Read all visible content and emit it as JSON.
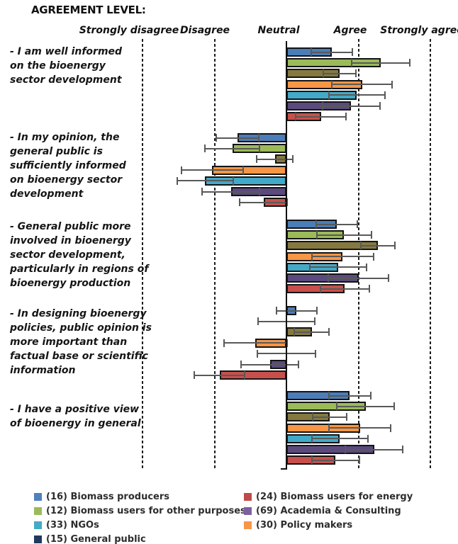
{
  "title": "AGREEMENT LEVEL:",
  "chart_data": {
    "type": "bar",
    "orientation": "horizontal",
    "title": "AGREEMENT LEVEL:",
    "categories_axis": [
      "Strongly disagree",
      "Disagree",
      "Neutral",
      "Agree",
      "Strongly agree"
    ],
    "value_range": [
      -2,
      2
    ],
    "value_mapping": {
      "Strongly disagree": -2,
      "Disagree": -1,
      "Neutral": 0,
      "Agree": 1,
      "Strongly agree": 2
    },
    "grid": "dashed vertical lines at each agreement level, solid axis at Neutral",
    "error_bars": true,
    "statements": [
      "- I am well informed on the bioenergy sector development",
      "- In my opinion, the general public is sufficiently informed on bioenergy sector development",
      "- General public more involved in bioenergy sector development, particularly in regions of bioenergy production",
      "- In designing bioenergy policies, public opinion is more important than factual base or scientific information",
      "- I have a positive view of bioenergy in general"
    ],
    "series": [
      {
        "name": "Biomass producers",
        "n": 16,
        "bar_color": "#4B7DB8",
        "values": [
          0.63,
          -0.68,
          0.7,
          0.14,
          0.88
        ],
        "errors": [
          0.29,
          0.3,
          0.29,
          0.28,
          0.29
        ]
      },
      {
        "name": "Biomass users for other purposes",
        "n": 12,
        "bar_color": "#9BBB59",
        "values": [
          1.31,
          -0.75,
          0.8,
          0.0,
          1.1
        ],
        "errors": [
          0.4,
          0.38,
          0.38,
          0.39,
          0.4
        ]
      },
      {
        "name": "General public",
        "n": 15,
        "bar_color": "#85793F",
        "values": [
          0.74,
          -0.16,
          1.27,
          0.35,
          0.6
        ],
        "errors": [
          0.23,
          0.25,
          0.24,
          0.24,
          0.24
        ]
      },
      {
        "name": "Policy makers",
        "n": 30,
        "bar_color": "#F79646",
        "values": [
          1.05,
          -1.03,
          0.78,
          -0.43,
          1.02
        ],
        "errors": [
          0.42,
          0.43,
          0.43,
          0.44,
          0.43
        ]
      },
      {
        "name": "NGOs",
        "n": 33,
        "bar_color": "#42AAC8",
        "values": [
          0.98,
          -1.13,
          0.72,
          0.0,
          0.74
        ],
        "errors": [
          0.39,
          0.39,
          0.39,
          0.4,
          0.39
        ]
      },
      {
        "name": "Academia & Consulting",
        "n": 69,
        "bar_color": "#5B4A7E",
        "values": [
          0.9,
          -0.77,
          1.0,
          -0.23,
          1.22
        ],
        "errors": [
          0.4,
          0.4,
          0.42,
          0.4,
          0.4
        ]
      },
      {
        "name": "Biomass users for energy",
        "n": 24,
        "bar_color": "#C8504C",
        "values": [
          0.48,
          -0.32,
          0.81,
          -0.93,
          0.68
        ],
        "errors": [
          0.35,
          0.33,
          0.34,
          0.35,
          0.33
        ]
      }
    ],
    "legend_position": "bottom"
  },
  "legend": {
    "left_column": [
      {
        "label": "(16) Biomass producers",
        "color": "#4F81BD"
      },
      {
        "label": "(12) Biomass users for other purposes",
        "color": "#9BBB59"
      },
      {
        "label": "(33) NGOs",
        "color": "#45AAC6"
      },
      {
        "label": "(15) General public",
        "color": "#203A5C"
      }
    ],
    "right_column": [
      {
        "label": "(24) Biomass users for energy",
        "color": "#BE4B48"
      },
      {
        "label": "(69) Academia & Consulting",
        "color": "#7D60A0"
      },
      {
        "label": "(30) Policy makers",
        "color": "#F79646"
      }
    ]
  }
}
